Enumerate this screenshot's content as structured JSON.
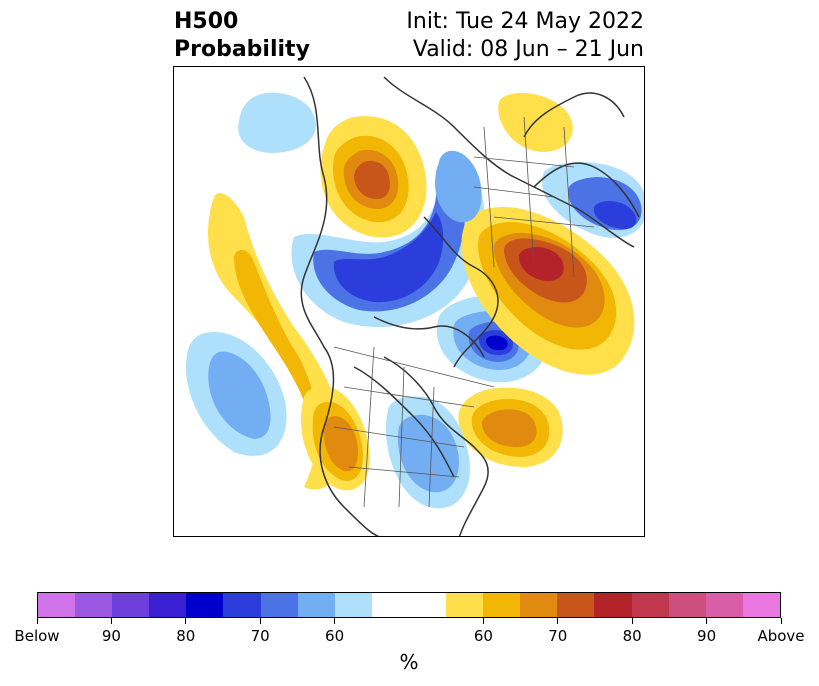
{
  "title": {
    "left_line1": "H500",
    "left_line2": "Probability",
    "init": "Init: Tue 24 May 2022",
    "valid": "Valid: 08 Jun – 21 Jun"
  },
  "colorbar": {
    "colors": [
      "#d073e8",
      "#9b58e0",
      "#6e3fdb",
      "#3b1fd2",
      "#0000cc",
      "#2b3ddb",
      "#4b73e6",
      "#74aef2",
      "#aee0fc",
      "#ffffff",
      "#ffffff",
      "#ffe04a",
      "#f2b705",
      "#e08a10",
      "#c8561a",
      "#b4232a",
      "#c0374e",
      "#cc4f7c",
      "#d95ea8",
      "#e878e0"
    ],
    "tick_labels": [
      "Below",
      "90",
      "80",
      "70",
      "60",
      "60",
      "70",
      "80",
      "90",
      "Above"
    ],
    "unit": "%"
  },
  "map": {
    "anomalies": [
      {
        "sign": "above",
        "level": 4
      },
      {
        "sign": "above",
        "level": 3
      },
      {
        "sign": "below",
        "level": 4
      },
      {
        "sign": "above",
        "level": 5
      },
      {
        "sign": "below",
        "level": 5
      },
      {
        "sign": "above",
        "level": 3
      },
      {
        "sign": "below",
        "level": 2
      },
      {
        "sign": "above",
        "level": 2
      },
      {
        "sign": "below",
        "level": 3
      },
      {
        "sign": "below",
        "level": 1
      },
      {
        "sign": "above",
        "level": 1
      },
      {
        "sign": "below",
        "level": 2
      }
    ]
  }
}
